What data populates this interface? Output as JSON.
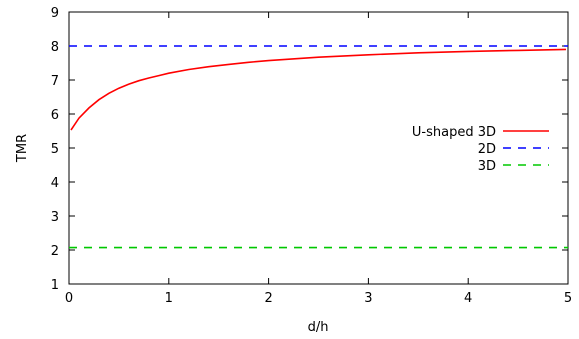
{
  "chart_data": {
    "type": "line",
    "xlabel": "d/h",
    "ylabel": "TMR",
    "xlim": [
      0,
      5
    ],
    "ylim": [
      1,
      9
    ],
    "xticks": [
      "0",
      "1",
      "2",
      "3",
      "4",
      "5"
    ],
    "yticks": [
      "1",
      "2",
      "3",
      "4",
      "5",
      "6",
      "7",
      "8",
      "9"
    ],
    "grid": false,
    "legend_position": "right",
    "series": [
      {
        "name": "U-shaped 3D",
        "color": "#ff0000",
        "style": "solid",
        "x": [
          0.02,
          0.1,
          0.2,
          0.3,
          0.4,
          0.5,
          0.6,
          0.7,
          0.8,
          0.9,
          1.0,
          1.2,
          1.4,
          1.6,
          1.8,
          2.0,
          2.5,
          3.0,
          3.5,
          4.0,
          4.5,
          4.98
        ],
        "values": [
          5.53,
          5.88,
          6.18,
          6.42,
          6.61,
          6.76,
          6.88,
          6.98,
          7.06,
          7.13,
          7.2,
          7.31,
          7.39,
          7.46,
          7.52,
          7.57,
          7.67,
          7.74,
          7.8,
          7.84,
          7.87,
          7.9
        ]
      },
      {
        "name": "2D",
        "color": "#0000ff",
        "style": "dashed",
        "x": [
          0,
          5
        ],
        "values": [
          8.0,
          8.0
        ]
      },
      {
        "name": "3D",
        "color": "#00c800",
        "style": "dashed",
        "x": [
          0,
          5
        ],
        "values": [
          2.07,
          2.07
        ]
      }
    ]
  }
}
